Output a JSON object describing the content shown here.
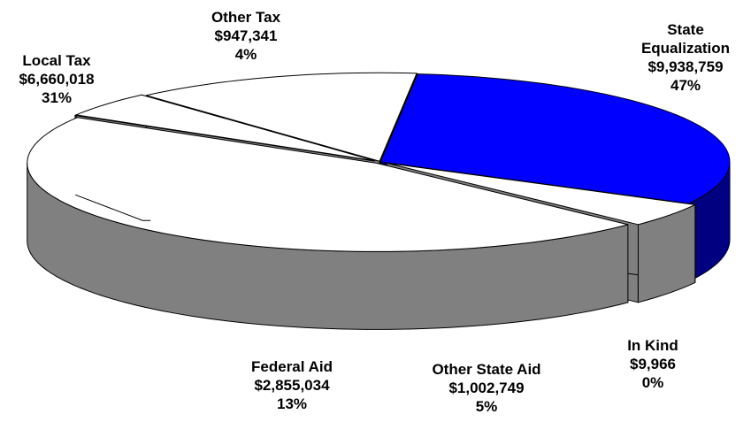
{
  "chart_data": {
    "type": "pie",
    "style": "3d-exploded",
    "slices": [
      {
        "label": "State Equalization",
        "label_lines": [
          "State",
          "Equalization"
        ],
        "value": 9938759,
        "value_text": "$9,938,759",
        "percent": "47%",
        "color": "#ffffff"
      },
      {
        "label": "In Kind",
        "label_lines": [
          "In Kind"
        ],
        "value": 9966,
        "value_text": "$9,966",
        "percent": "0%",
        "color": "#ffffff"
      },
      {
        "label": "Other State Aid",
        "label_lines": [
          "Other State Aid"
        ],
        "value": 1002749,
        "value_text": "$1,002,749",
        "percent": "5%",
        "color": "#ffffff"
      },
      {
        "label": "Federal Aid",
        "label_lines": [
          "Federal Aid"
        ],
        "value": 2855034,
        "value_text": "$2,855,034",
        "percent": "13%",
        "color": "#ffffff"
      },
      {
        "label": "Local Tax",
        "label_lines": [
          "Local Tax"
        ],
        "value": 6660018,
        "value_text": "$6,660,018",
        "percent": "31%",
        "color": "#0000ff"
      },
      {
        "label": "Other Tax",
        "label_lines": [
          "Other Tax"
        ],
        "value": 947341,
        "value_text": "$947,341",
        "percent": "4%",
        "color": "#ffffff"
      }
    ],
    "colors": {
      "side_default": "#808080",
      "side_local_tax": "#000080",
      "outline": "#000000"
    }
  }
}
